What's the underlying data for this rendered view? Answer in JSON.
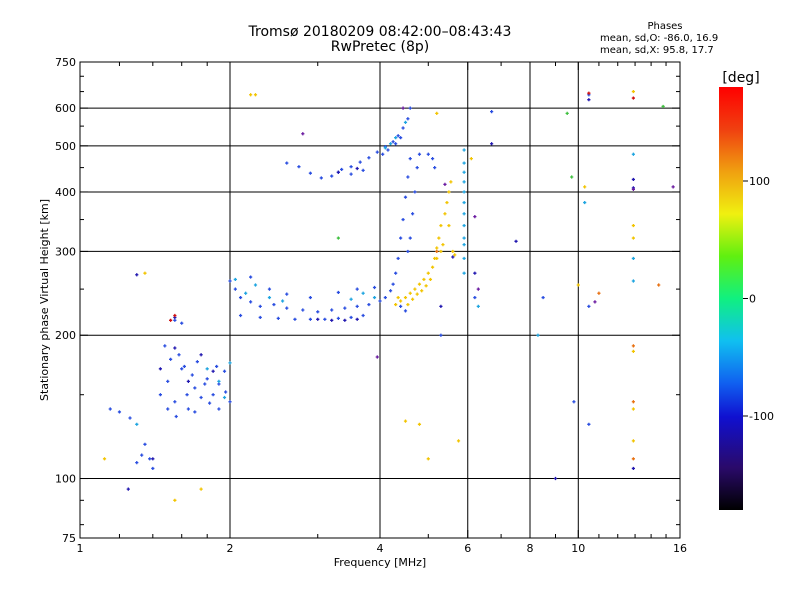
{
  "header": {
    "title_line1": "Tromsø 20180209 08:42:00–08:43:43",
    "title_line2": "RwPretec (8p)",
    "phase_title": "Phases",
    "phase_o": "mean, sd,O: -86.0, 16.9",
    "phase_x": "mean, sd,X: 95.8, 17.7"
  },
  "colors": {
    "background": "#ffffff",
    "frame": "#000000",
    "grid": "#000000"
  },
  "chart_data": {
    "type": "scatter",
    "xlabel": "Frequency [MHz]",
    "ylabel": "Stationary phase Virtual Height [km]",
    "xscale": "log",
    "yscale": "log",
    "xlim": [
      1,
      16
    ],
    "ylim": [
      75,
      750
    ],
    "x_ticks": [
      1,
      2,
      4,
      6,
      8,
      10,
      16
    ],
    "x_tick_labels": [
      "1",
      "2",
      "4",
      "6",
      "8",
      "10",
      "16"
    ],
    "y_ticks": [
      75,
      100,
      200,
      300,
      400,
      500,
      600,
      750
    ],
    "y_tick_labels": [
      "75",
      "100",
      "200",
      "300",
      "400",
      "500",
      "600",
      "750"
    ],
    "grid": true,
    "colorbar": {
      "label": "[deg]",
      "range": [
        -180,
        180
      ],
      "ticks": [
        100,
        0,
        -100
      ],
      "tick_labels": [
        "100",
        "0",
        "-100"
      ]
    },
    "series": [
      {
        "color": "#2a4ee0",
        "phase_deg": -110,
        "points": [
          [
            1.15,
            140
          ],
          [
            1.2,
            138
          ],
          [
            1.26,
            134
          ],
          [
            1.3,
            108
          ],
          [
            1.33,
            112
          ],
          [
            1.35,
            118
          ],
          [
            1.38,
            110
          ],
          [
            1.4,
            105
          ],
          [
            1.45,
            150
          ],
          [
            1.5,
            160
          ],
          [
            1.55,
            145
          ],
          [
            1.6,
            170
          ],
          [
            1.65,
            140
          ],
          [
            1.7,
            155
          ],
          [
            1.75,
            148
          ],
          [
            1.8,
            162
          ],
          [
            1.85,
            150
          ],
          [
            1.9,
            158
          ],
          [
            1.95,
            168
          ],
          [
            2.0,
            145
          ],
          [
            1.48,
            190
          ],
          [
            1.52,
            178
          ],
          [
            1.58,
            182
          ],
          [
            1.62,
            172
          ],
          [
            1.68,
            165
          ],
          [
            1.72,
            176
          ],
          [
            1.78,
            158
          ],
          [
            1.88,
            172
          ],
          [
            1.5,
            140
          ],
          [
            1.56,
            135
          ],
          [
            1.64,
            150
          ],
          [
            1.7,
            138
          ],
          [
            1.82,
            144
          ],
          [
            1.9,
            140
          ],
          [
            1.96,
            152
          ],
          [
            1.55,
            215
          ],
          [
            1.6,
            212
          ],
          [
            2.0,
            260
          ],
          [
            2.05,
            250
          ],
          [
            2.1,
            240
          ],
          [
            2.2,
            235
          ],
          [
            2.3,
            230
          ],
          [
            2.45,
            232
          ],
          [
            2.6,
            228
          ],
          [
            2.8,
            226
          ],
          [
            3.0,
            224
          ],
          [
            3.2,
            226
          ],
          [
            3.4,
            228
          ],
          [
            3.6,
            230
          ],
          [
            3.8,
            232
          ],
          [
            4.0,
            236
          ],
          [
            4.1,
            240
          ],
          [
            4.2,
            248
          ],
          [
            4.25,
            256
          ],
          [
            4.3,
            270
          ],
          [
            4.35,
            290
          ],
          [
            4.4,
            320
          ],
          [
            4.45,
            350
          ],
          [
            4.5,
            390
          ],
          [
            4.55,
            430
          ],
          [
            4.6,
            470
          ],
          [
            2.1,
            220
          ],
          [
            2.3,
            218
          ],
          [
            2.5,
            217
          ],
          [
            2.7,
            216
          ],
          [
            2.9,
            216
          ],
          [
            3.1,
            216
          ],
          [
            3.3,
            217
          ],
          [
            3.5,
            218
          ],
          [
            3.7,
            220
          ],
          [
            2.2,
            265
          ],
          [
            2.4,
            250
          ],
          [
            2.6,
            244
          ],
          [
            2.9,
            240
          ],
          [
            3.3,
            246
          ],
          [
            3.6,
            250
          ],
          [
            3.9,
            252
          ],
          [
            2.6,
            460
          ],
          [
            2.75,
            452
          ],
          [
            2.9,
            438
          ],
          [
            3.05,
            428
          ],
          [
            3.2,
            432
          ],
          [
            3.35,
            446
          ],
          [
            3.5,
            452
          ],
          [
            3.65,
            462
          ],
          [
            3.8,
            472
          ],
          [
            3.95,
            485
          ],
          [
            4.1,
            498
          ],
          [
            4.25,
            510
          ],
          [
            4.35,
            525
          ],
          [
            4.45,
            545
          ],
          [
            4.55,
            570
          ],
          [
            4.6,
            600
          ],
          [
            4.05,
            480
          ],
          [
            4.15,
            490
          ],
          [
            4.3,
            505
          ],
          [
            4.4,
            520
          ],
          [
            3.3,
            440
          ],
          [
            3.5,
            436
          ],
          [
            3.7,
            444
          ],
          [
            4.55,
            300
          ],
          [
            4.6,
            320
          ],
          [
            4.65,
            360
          ],
          [
            4.7,
            400
          ],
          [
            4.75,
            450
          ],
          [
            4.8,
            480
          ],
          [
            4.4,
            230
          ],
          [
            4.5,
            225
          ],
          [
            5.0,
            480
          ],
          [
            5.1,
            470
          ],
          [
            5.15,
            450
          ],
          [
            5.3,
            200
          ],
          [
            6.7,
            590
          ],
          [
            9.8,
            145
          ],
          [
            10.5,
            130
          ],
          [
            10.5,
            230
          ],
          [
            6.2,
            240
          ],
          [
            8.5,
            240
          ],
          [
            10.5,
            640
          ]
        ]
      },
      {
        "color": "#1fa5e0",
        "phase_deg": -75,
        "points": [
          [
            1.9,
            160
          ],
          [
            1.95,
            148
          ],
          [
            1.8,
            170
          ],
          [
            2.0,
            175
          ],
          [
            2.05,
            262
          ],
          [
            2.15,
            245
          ],
          [
            2.25,
            255
          ],
          [
            2.4,
            240
          ],
          [
            2.55,
            236
          ],
          [
            3.5,
            238
          ],
          [
            3.7,
            245
          ],
          [
            3.9,
            240
          ],
          [
            4.1,
            495
          ],
          [
            4.2,
            505
          ],
          [
            4.3,
            520
          ],
          [
            4.5,
            560
          ],
          [
            5.9,
            460
          ],
          [
            5.9,
            420
          ],
          [
            5.9,
            380
          ],
          [
            5.9,
            340
          ],
          [
            5.9,
            310
          ],
          [
            5.9,
            290
          ],
          [
            5.9,
            270
          ],
          [
            5.9,
            440
          ],
          [
            5.9,
            490
          ],
          [
            5.9,
            400
          ],
          [
            5.9,
            360
          ],
          [
            5.9,
            320
          ],
          [
            1.3,
            130
          ],
          [
            12.9,
            480
          ],
          [
            12.9,
            290
          ],
          [
            12.9,
            260
          ],
          [
            10.3,
            380
          ],
          [
            6.3,
            230
          ],
          [
            8.3,
            200
          ]
        ]
      },
      {
        "color": "#2218b0",
        "phase_deg": -135,
        "points": [
          [
            1.45,
            170
          ],
          [
            1.55,
            188
          ],
          [
            1.65,
            160
          ],
          [
            1.75,
            182
          ],
          [
            1.85,
            168
          ],
          [
            3.0,
            216
          ],
          [
            3.2,
            215
          ],
          [
            3.4,
            215
          ],
          [
            3.6,
            216
          ],
          [
            3.3,
            440
          ],
          [
            3.6,
            448
          ],
          [
            1.3,
            268
          ],
          [
            1.4,
            110
          ],
          [
            1.25,
            95
          ],
          [
            1.55,
            218
          ],
          [
            12.9,
            105
          ],
          [
            12.9,
            425
          ],
          [
            12.9,
            408
          ],
          [
            10.5,
            625
          ],
          [
            6.7,
            505
          ],
          [
            7.5,
            315
          ],
          [
            9.0,
            100
          ],
          [
            5.3,
            230
          ],
          [
            5.6,
            292
          ],
          [
            6.2,
            270
          ]
        ]
      },
      {
        "color": "#f2c400",
        "phase_deg": 110,
        "points": [
          [
            4.3,
            232
          ],
          [
            4.4,
            236
          ],
          [
            4.5,
            240
          ],
          [
            4.6,
            245
          ],
          [
            4.7,
            250
          ],
          [
            4.8,
            256
          ],
          [
            4.9,
            262
          ],
          [
            5.0,
            270
          ],
          [
            5.1,
            278
          ],
          [
            5.15,
            290
          ],
          [
            5.2,
            305
          ],
          [
            5.25,
            320
          ],
          [
            5.3,
            340
          ],
          [
            5.4,
            360
          ],
          [
            5.45,
            380
          ],
          [
            5.5,
            400
          ],
          [
            5.55,
            420
          ],
          [
            4.35,
            240
          ],
          [
            4.55,
            232
          ],
          [
            4.65,
            238
          ],
          [
            4.75,
            244
          ],
          [
            4.85,
            248
          ],
          [
            4.95,
            254
          ],
          [
            5.05,
            262
          ],
          [
            5.2,
            290
          ],
          [
            5.3,
            300
          ],
          [
            5.35,
            310
          ],
          [
            5.6,
            300
          ],
          [
            5.65,
            295
          ],
          [
            5.5,
            340
          ],
          [
            4.5,
            132
          ],
          [
            5.0,
            110
          ],
          [
            5.75,
            120
          ],
          [
            2.25,
            640
          ],
          [
            2.2,
            640
          ],
          [
            1.75,
            95
          ],
          [
            1.55,
            90
          ],
          [
            1.35,
            270
          ],
          [
            1.12,
            110
          ],
          [
            12.9,
            185
          ],
          [
            12.9,
            140
          ],
          [
            12.9,
            120
          ],
          [
            12.9,
            340
          ],
          [
            12.9,
            320
          ],
          [
            10.3,
            410
          ],
          [
            12.9,
            650
          ],
          [
            5.2,
            585
          ],
          [
            6.1,
            470
          ],
          [
            4.8,
            130
          ],
          [
            10.0,
            255
          ]
        ]
      },
      {
        "color": "#e87010",
        "phase_deg": 150,
        "points": [
          [
            12.9,
            110
          ],
          [
            12.9,
            145
          ],
          [
            12.9,
            190
          ],
          [
            14.5,
            255
          ],
          [
            11.0,
            245
          ],
          [
            5.2,
            300
          ]
        ]
      },
      {
        "color": "#d01010",
        "phase_deg": 175,
        "points": [
          [
            1.55,
            220
          ],
          [
            1.52,
            215
          ],
          [
            12.9,
            630
          ],
          [
            10.5,
            645
          ]
        ]
      },
      {
        "color": "#40c040",
        "phase_deg": 20,
        "points": [
          [
            3.3,
            320
          ],
          [
            9.7,
            430
          ],
          [
            9.5,
            585
          ],
          [
            14.8,
            605
          ]
        ]
      },
      {
        "color": "#6a1aa0",
        "phase_deg": -155,
        "points": [
          [
            4.45,
            600
          ],
          [
            2.8,
            530
          ],
          [
            6.2,
            355
          ],
          [
            6.3,
            250
          ],
          [
            12.9,
            405
          ],
          [
            15.5,
            410
          ],
          [
            10.8,
            235
          ],
          [
            5.4,
            415
          ],
          [
            3.95,
            180
          ]
        ]
      }
    ]
  }
}
